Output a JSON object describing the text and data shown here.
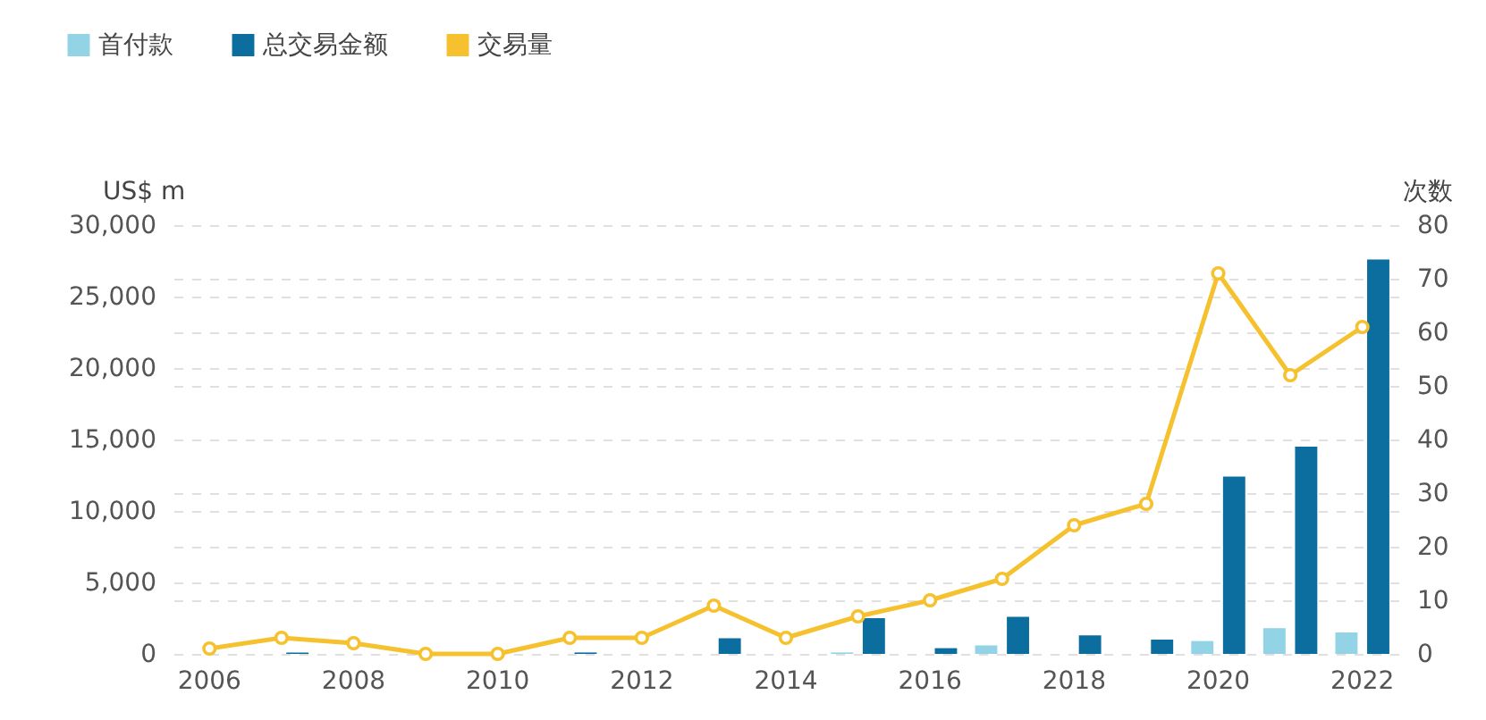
{
  "chart_data": {
    "type": "bar",
    "categories": [
      "2006",
      null,
      "2008",
      null,
      "2010",
      null,
      "2012",
      null,
      "2014",
      null,
      "2016",
      null,
      "2018",
      null,
      "2020",
      null,
      "2022"
    ],
    "ylabel": "US$ m",
    "y2label": "次数",
    "ylim": [
      0,
      30000
    ],
    "yticks": [
      0,
      {
        "value": 5000,
        "label": "5,000"
      },
      {
        "value": 10000,
        "label": "10,000"
      },
      {
        "value": 15000,
        "label": "15,000"
      },
      {
        "value": 20000,
        "label": "20,000"
      },
      {
        "value": 25000,
        "label": "25,000"
      },
      {
        "value": 30000,
        "label": "30,000"
      }
    ],
    "y2lim": [
      0,
      80
    ],
    "y2ticks": [
      0,
      10,
      20,
      30,
      40,
      50,
      60,
      70,
      80
    ],
    "grid": true,
    "legend": "top left",
    "marker": "circle",
    "series": [
      {
        "name": "首付款",
        "color": "#92d3e6",
        "values": [
          null,
          null,
          null,
          null,
          null,
          null,
          null,
          null,
          null,
          100,
          null,
          600,
          null,
          null,
          900,
          1800,
          1500
        ]
      },
      {
        "name": "总交易金额",
        "color": "#0b6e9e",
        "values": [
          null,
          100,
          null,
          null,
          null,
          100,
          null,
          1100,
          null,
          2500,
          400,
          2600,
          1300,
          1000,
          12400,
          14500,
          27600
        ]
      },
      {
        "name": "交易量",
        "type": "line",
        "axis": "y2",
        "color": "#f5c12f",
        "values": [
          1,
          3,
          2,
          0,
          0,
          3,
          3,
          9,
          3,
          7,
          10,
          14,
          24,
          28,
          71,
          52,
          61
        ]
      }
    ]
  }
}
